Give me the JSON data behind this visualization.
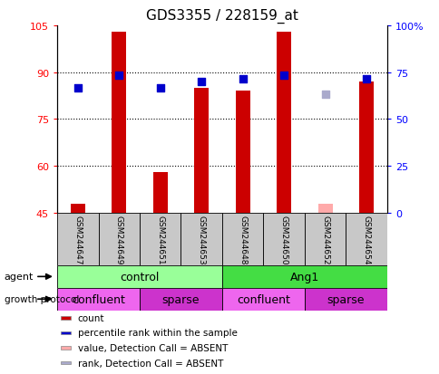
{
  "title": "GDS3355 / 228159_at",
  "samples": [
    "GSM244647",
    "GSM244649",
    "GSM244651",
    "GSM244653",
    "GSM244648",
    "GSM244650",
    "GSM244652",
    "GSM244654"
  ],
  "count_values": [
    48,
    103,
    58,
    85,
    84,
    103,
    null,
    87
  ],
  "count_absent": [
    null,
    null,
    null,
    null,
    null,
    null,
    48,
    null
  ],
  "percentile_values": [
    85,
    89,
    85,
    87,
    88,
    89,
    null,
    88
  ],
  "percentile_absent": [
    null,
    null,
    null,
    null,
    null,
    null,
    83,
    null
  ],
  "ylim_left": [
    45,
    105
  ],
  "ylim_right": [
    0,
    100
  ],
  "yticks_left": [
    45,
    60,
    75,
    90,
    105
  ],
  "yticks_right": [
    0,
    25,
    50,
    75,
    100
  ],
  "bar_color": "#cc0000",
  "bar_absent_color": "#ffaaaa",
  "dot_color": "#0000cc",
  "dot_absent_color": "#aaaacc",
  "agent_groups": [
    {
      "label": "control",
      "start": 0,
      "end": 4,
      "color": "#99ff99"
    },
    {
      "label": "Ang1",
      "start": 4,
      "end": 8,
      "color": "#44dd44"
    }
  ],
  "growth_groups": [
    {
      "label": "confluent",
      "start": 0,
      "end": 2,
      "color": "#ee66ee"
    },
    {
      "label": "sparse",
      "start": 2,
      "end": 4,
      "color": "#cc33cc"
    },
    {
      "label": "confluent",
      "start": 4,
      "end": 6,
      "color": "#ee66ee"
    },
    {
      "label": "sparse",
      "start": 6,
      "end": 8,
      "color": "#cc33cc"
    }
  ],
  "legend_items": [
    {
      "label": "count",
      "color": "#cc0000"
    },
    {
      "label": "percentile rank within the sample",
      "color": "#0000cc"
    },
    {
      "label": "value, Detection Call = ABSENT",
      "color": "#ffaaaa"
    },
    {
      "label": "rank, Detection Call = ABSENT",
      "color": "#aaaacc"
    }
  ],
  "bar_width": 0.35,
  "dot_size": 40,
  "baseline": 45,
  "sample_box_color": "#c8c8c8",
  "fig_width": 4.85,
  "fig_height": 4.14,
  "dpi": 100
}
